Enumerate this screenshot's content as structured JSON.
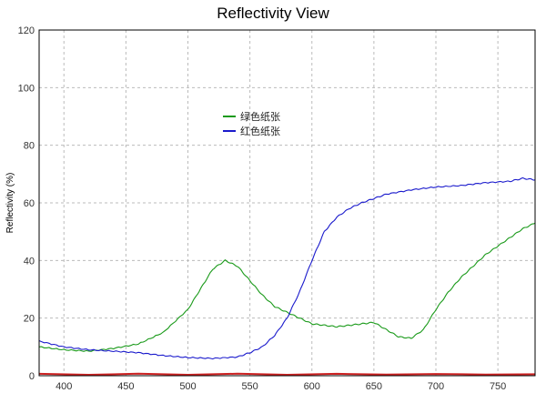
{
  "chart_data": {
    "type": "line",
    "title": "Reflectivity View",
    "xlabel": "",
    "ylabel": "Reflectivity (%)",
    "xlim": [
      380,
      780
    ],
    "ylim": [
      0,
      120
    ],
    "xticks": [
      400,
      450,
      500,
      550,
      600,
      650,
      700,
      750
    ],
    "yticks": [
      0,
      20,
      40,
      60,
      80,
      100,
      120
    ],
    "grid": true,
    "legend_position": "upper-center",
    "series": [
      {
        "name": "绿色纸张",
        "color": "#1a9a1a",
        "x": [
          380,
          400,
          420,
          440,
          460,
          480,
          500,
          510,
          520,
          530,
          540,
          550,
          560,
          570,
          580,
          590,
          600,
          610,
          620,
          630,
          640,
          650,
          660,
          670,
          680,
          690,
          700,
          710,
          720,
          730,
          740,
          750,
          760,
          770,
          780
        ],
        "y": [
          10,
          9,
          8.5,
          9.5,
          11,
          15,
          23,
          30,
          37,
          40,
          38,
          33,
          28,
          24,
          22,
          20,
          18,
          17.5,
          17,
          17.5,
          18,
          18.5,
          16,
          13.5,
          13,
          16,
          23,
          29,
          34,
          38,
          42,
          45,
          48,
          51,
          53
        ]
      },
      {
        "name": "红色纸张",
        "color": "#1a1acc",
        "x": [
          380,
          400,
          420,
          440,
          460,
          480,
          500,
          520,
          540,
          550,
          560,
          570,
          580,
          590,
          600,
          610,
          620,
          630,
          640,
          650,
          660,
          680,
          700,
          720,
          740,
          760,
          770,
          780
        ],
        "y": [
          12,
          10,
          9,
          8.5,
          8,
          7,
          6.3,
          6,
          6.5,
          8,
          10,
          14,
          20,
          29,
          40,
          50,
          55,
          58,
          60,
          61.5,
          63,
          64.5,
          65.5,
          66,
          67,
          67.5,
          68.5,
          68
        ]
      },
      {
        "color": "#cc2222",
        "x": [
          380,
          780
        ],
        "y": [
          0.5,
          0.5
        ]
      }
    ]
  }
}
